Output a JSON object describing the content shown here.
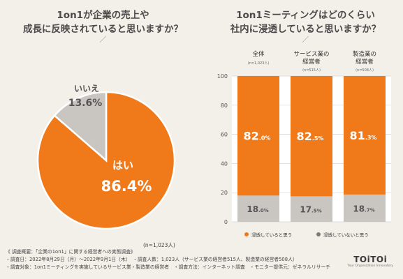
{
  "left_title": {
    "line1": "1on1が企業の売上や",
    "line2": "成長に反映されていると思いますか？",
    "divider": "／"
  },
  "right_title": {
    "line1": "1on1ミーティングはどのくらい",
    "line2": "社内に浸透していると思いますか？",
    "divider": "／"
  },
  "chart_data": [
    {
      "type": "pie",
      "slices": [
        {
          "label": "はい",
          "value": 86.4,
          "display": "86.4%",
          "color": "#f07a1a"
        },
        {
          "label": "いいえ",
          "value": 13.6,
          "display": "13.6%",
          "color": "#c9c6c2"
        }
      ],
      "note": "(n=1,023人)"
    },
    {
      "type": "bar",
      "stacked": true,
      "ylim": [
        0,
        100
      ],
      "yticks": [
        "0",
        "20",
        "40",
        "60",
        "80",
        "100"
      ],
      "categories": [
        {
          "label1": "全体",
          "label2": "",
          "n": "(n=1,023人)"
        },
        {
          "label1": "サービス業の",
          "label2": "経営者",
          "n": "(n=515人)"
        },
        {
          "label1": "製造業の",
          "label2": "経営者",
          "n": "(n=508人)"
        }
      ],
      "series": [
        {
          "name": "浸透していると思う",
          "color": "#f07a1a",
          "values": [
            82.0,
            82.5,
            81.3
          ],
          "labels_main": [
            "82",
            "82",
            "81"
          ],
          "labels_sub": [
            ".0%",
            ".5%",
            ".3%"
          ]
        },
        {
          "name": "浸透していないと思う",
          "color": "#c9c6c2",
          "values": [
            18.0,
            17.5,
            18.7
          ],
          "labels_main": [
            "18",
            "17",
            "18"
          ],
          "labels_sub": [
            ".0%",
            ".5%",
            ".7%"
          ]
        }
      ]
    }
  ],
  "footer": {
    "line1": "《 調査概要：「企業の1on1」に関する経営者への実態調査》",
    "line2": "・調査日：2022年8月29日（月）〜2022年9月1日（木）　・調査人数：1,023人（サービス業の経営者515人、製造業の経営者508人）",
    "line3": "・調査対象：1on1ミーティングを実施しているサービス業・製造業の経営者　・調査方法：インターネット調査　・モニター提供元：ゼネラルリサーチ"
  },
  "logo": {
    "name": "TOiTOi",
    "sub": "Your Organization Innovatory"
  }
}
